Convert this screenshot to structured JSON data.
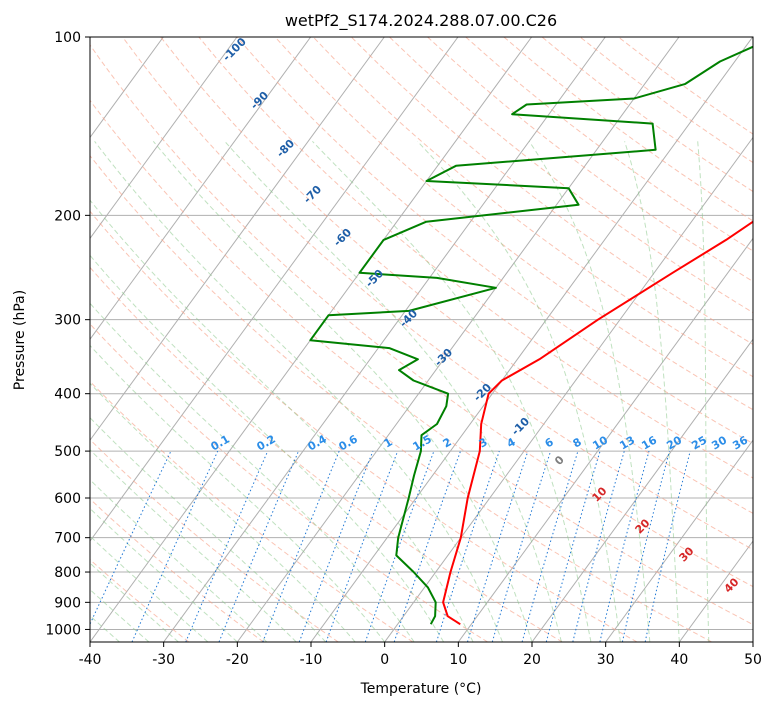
{
  "chart_data": {
    "type": "line",
    "title": "wetPf2_S174.2024.288.07.00.C26",
    "xlabel": "Temperature (°C)",
    "ylabel": "Pressure (hPa)",
    "xlim": [
      -40,
      50
    ],
    "ylim": [
      1050,
      100
    ],
    "y_scale": "log",
    "x_ticks": [
      -40,
      -30,
      -20,
      -10,
      0,
      10,
      20,
      30,
      40,
      50
    ],
    "y_ticks": [
      100,
      200,
      300,
      400,
      500,
      600,
      700,
      800,
      900,
      1000
    ],
    "grid": true,
    "skew": true,
    "series": [
      {
        "color": "#ff0000",
        "points": [
          [
            8.5,
            980
          ],
          [
            6.0,
            950
          ],
          [
            4.0,
            900
          ],
          [
            2.0,
            800
          ],
          [
            0.0,
            700
          ],
          [
            -3.0,
            600
          ],
          [
            -6.0,
            500
          ],
          [
            -8.5,
            450
          ],
          [
            -10.5,
            400
          ],
          [
            -10.0,
            380
          ],
          [
            -7.0,
            350
          ],
          [
            -3.0,
            300
          ],
          [
            2.5,
            250
          ],
          [
            6.5,
            220
          ],
          [
            9.0,
            200
          ],
          [
            12.5,
            180
          ],
          [
            14.5,
            165
          ],
          [
            17.0,
            150
          ],
          [
            20.0,
            140
          ],
          [
            22.5,
            125
          ],
          [
            26.5,
            110
          ],
          [
            28.5,
            100
          ]
        ]
      },
      {
        "color": "#008000",
        "points": [
          [
            4.5,
            980
          ],
          [
            4.3,
            950
          ],
          [
            3.0,
            900
          ],
          [
            0.5,
            850
          ],
          [
            -3.0,
            800
          ],
          [
            -7.0,
            750
          ],
          [
            -8.5,
            700
          ],
          [
            -11.0,
            600
          ],
          [
            -12.5,
            550
          ],
          [
            -14.0,
            500
          ],
          [
            -15.5,
            470
          ],
          [
            -14.5,
            450
          ],
          [
            -15.0,
            420
          ],
          [
            -16.0,
            400
          ],
          [
            -22.0,
            380
          ],
          [
            -25.0,
            365
          ],
          [
            -23.5,
            350
          ],
          [
            -28.5,
            335
          ],
          [
            -40.0,
            325
          ],
          [
            -40.0,
            295
          ],
          [
            -29.5,
            290
          ],
          [
            -20.0,
            265
          ],
          [
            -29.0,
            255
          ],
          [
            -40.0,
            250
          ],
          [
            -40.0,
            220
          ],
          [
            -36.0,
            205
          ],
          [
            -17.0,
            192
          ],
          [
            -20.0,
            180
          ],
          [
            -40.0,
            175
          ],
          [
            -37.5,
            165
          ],
          [
            -12.0,
            155
          ],
          [
            -15.0,
            140
          ],
          [
            -35.0,
            135
          ],
          [
            -34.0,
            130
          ],
          [
            -20.0,
            127
          ],
          [
            -14.5,
            120
          ],
          [
            -12.0,
            110
          ],
          [
            -7.0,
            100
          ]
        ]
      }
    ],
    "dry_adiabat_labels": [
      "-100",
      "-90",
      "-80",
      "-70",
      "-60",
      "-50",
      "-40",
      "-30",
      "-20",
      "-10",
      "0",
      "10",
      "20",
      "30",
      "40"
    ],
    "mixing_ratio_labels": [
      "0.1",
      "0.2",
      "0.4",
      "0.6",
      "1",
      "1.5",
      "2",
      "3",
      "4",
      "6",
      "8",
      "10",
      "13",
      "16",
      "20",
      "25",
      "30",
      "36"
    ]
  }
}
